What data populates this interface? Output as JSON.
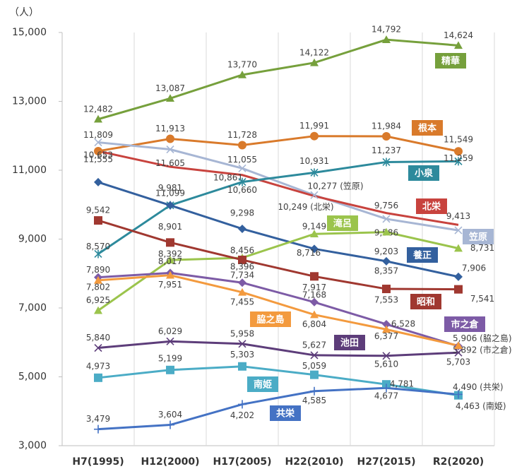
{
  "chart_data": {
    "type": "line",
    "y_label": "（人）",
    "categories": [
      "H7(1995)",
      "H12(2000)",
      "H17(2005)",
      "H22(2010)",
      "H27(2015)",
      "R2(2020)"
    ],
    "ylim": [
      3000,
      15000
    ],
    "yticks": [
      {
        "value": 3000,
        "label": "3,000"
      },
      {
        "value": 5000,
        "label": "5,000"
      },
      {
        "value": 7000,
        "label": "7,000"
      },
      {
        "value": 9000,
        "label": "9,000"
      },
      {
        "value": 11000,
        "label": "11,000"
      },
      {
        "value": 13000,
        "label": "13,000"
      },
      {
        "value": 15000,
        "label": "15,000"
      }
    ],
    "grid": true,
    "series": [
      {
        "name": "精華",
        "color": "#76a03c",
        "marker": "triangle",
        "values": [
          12482,
          13087,
          13770,
          14122,
          14792,
          14624
        ],
        "value_labels": [
          "12,482",
          "13,087",
          "13,770",
          "14,122",
          "14,792",
          "14,624"
        ]
      },
      {
        "name": "根本",
        "color": "#d97a2b",
        "marker": "circle",
        "values": [
          11555,
          11913,
          11728,
          11991,
          11984,
          11549
        ],
        "value_labels": [
          "11,555",
          "11,913",
          "11,728",
          "11,991",
          "11,984",
          "11,549"
        ]
      },
      {
        "name": "笠原",
        "color": "#a7b6d4",
        "marker": "x",
        "values": [
          11809,
          11605,
          11055,
          10277,
          9586,
          9254
        ],
        "value_labels": [
          "11,809",
          "11,605",
          "11,055",
          "10,277 (笠原)",
          "9,586",
          "9,254"
        ]
      },
      {
        "name": "北栄",
        "color": "#c8433e",
        "marker": "none",
        "values": [
          11555,
          11099,
          10861,
          10249,
          9756,
          9413
        ],
        "value_labels": [
          null,
          "11,099",
          "10,861",
          "10,249 (北栄)",
          "9,756",
          "9,413"
        ]
      },
      {
        "name": "小泉",
        "color": "#2d8a9c",
        "marker": "star",
        "values": [
          8570,
          9981,
          10660,
          10931,
          11237,
          11259
        ],
        "value_labels": [
          "8,570",
          "9,981",
          "10,660",
          "10,931",
          "11,237",
          "11,259"
        ]
      },
      {
        "name": "養正",
        "color": "#33609e",
        "marker": "diamond",
        "values": [
          10653,
          9981,
          9298,
          8716,
          8357,
          7906
        ],
        "value_labels": [
          "10,653",
          null,
          "9,298",
          "8,716",
          "8,357",
          "7,906"
        ]
      },
      {
        "name": "滝呂",
        "color": "#9bc44c",
        "marker": "triangle",
        "values": [
          6925,
          8392,
          8456,
          9149,
          9203,
          8731
        ],
        "value_labels": [
          "6,925",
          "8,392",
          "8,456",
          "9,149",
          "9,203",
          "8,731"
        ]
      },
      {
        "name": "昭和",
        "color": "#a03830",
        "marker": "square",
        "values": [
          9542,
          8901,
          8396,
          7917,
          7553,
          7541
        ],
        "value_labels": [
          "9,542",
          "8,901",
          "8,396",
          "7,917",
          "7,553",
          "7,541"
        ]
      },
      {
        "name": "市之倉",
        "color": "#7d5ba6",
        "marker": "diamond",
        "values": [
          7890,
          8017,
          7734,
          7168,
          6528,
          5892
        ],
        "value_labels": [
          "7,890",
          "8,017",
          "7,734",
          "7,168",
          "6,528",
          "5,892 (市之倉)"
        ]
      },
      {
        "name": "脇之島",
        "color": "#f39a3e",
        "marker": "triangle",
        "values": [
          7802,
          7951,
          7455,
          6804,
          6377,
          5906
        ],
        "value_labels": [
          "7,802",
          "7,951",
          "7,455",
          "6,804",
          "6,377",
          "5,906 (脇之島)"
        ]
      },
      {
        "name": "池田",
        "color": "#5d3d7a",
        "marker": "x",
        "values": [
          5840,
          6029,
          5958,
          5627,
          5610,
          5703
        ],
        "value_labels": [
          "5,840",
          "6,029",
          "5,958",
          "5,627",
          "5,610",
          "5,703"
        ]
      },
      {
        "name": "南姫",
        "color": "#4bacc6",
        "marker": "square",
        "values": [
          4973,
          5199,
          5303,
          5059,
          4781,
          4463
        ],
        "value_labels": [
          "4,973",
          "5,199",
          "5,303",
          "5,059",
          "4,781",
          "4,463 (南姫)"
        ]
      },
      {
        "name": "共栄",
        "color": "#4472c4",
        "marker": "plus",
        "values": [
          3479,
          3604,
          4202,
          4585,
          4677,
          4490
        ],
        "value_labels": [
          "3,479",
          "3,604",
          "4,202",
          "4,585",
          "4,677",
          "4,490 (共栄)"
        ]
      }
    ]
  }
}
